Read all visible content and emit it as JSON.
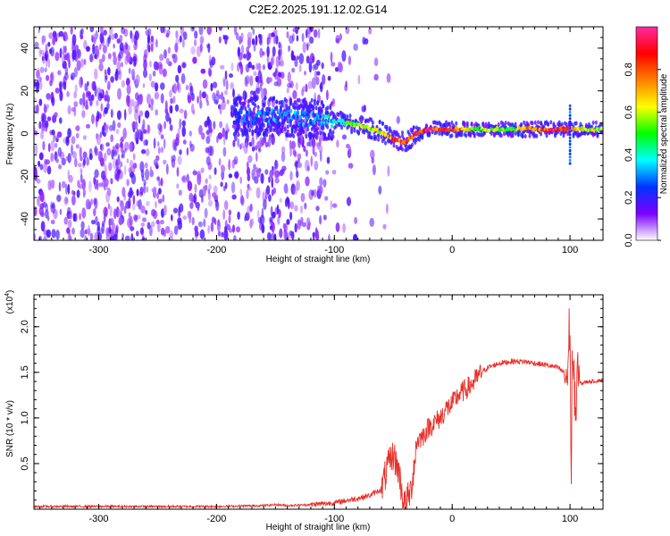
{
  "chart_data": [
    {
      "type": "heatmap",
      "title": "C2E2.2025.191.12.02.G14",
      "xlabel": "Height of straight line (km)",
      "ylabel": "Frequency (Hz)",
      "xlim": [
        -355,
        128
      ],
      "ylim": [
        -50,
        50
      ],
      "x_ticks": [
        -300,
        -200,
        -100,
        0,
        100
      ],
      "y_ticks": [
        -40,
        -20,
        0,
        20,
        40
      ],
      "colorbar": {
        "label": "Normalized spectral amplitude",
        "range": [
          0.0,
          1.0
        ],
        "ticks": [
          "0.0",
          "0.2",
          "0.4",
          "0.6",
          "0.8"
        ],
        "colors": [
          "#ffffff",
          "#7a00ff",
          "#0033ff",
          "#00ffff",
          "#00ff00",
          "#ffff00",
          "#ff8000",
          "#ff0000",
          "#ff2aa0"
        ]
      },
      "ridge": {
        "description_values_x": [
          -180,
          -150,
          -120,
          -100,
          -80,
          -60,
          -50,
          -40,
          -30,
          -20,
          0,
          20,
          50,
          80,
          95,
          110,
          128
        ],
        "description_values_y": [
          8,
          8,
          7,
          6,
          4,
          1,
          -3,
          -4,
          0,
          2,
          2,
          2,
          2,
          2,
          2,
          2,
          2
        ],
        "peak_amplitude": [
          0.3,
          0.35,
          0.35,
          0.45,
          0.6,
          0.65,
          0.85,
          0.9,
          0.95,
          0.95,
          0.95,
          0.6,
          0.6,
          0.95,
          0.9,
          0.7,
          0.6
        ]
      }
    },
    {
      "type": "line",
      "title": "",
      "xlabel": "Height of straight line (km)",
      "ylabel": "SNR (10 * v/v)",
      "y_multiplier": "(x10",
      "y_multiplier_exp": "4",
      "xlim": [
        -355,
        128
      ],
      "ylim": [
        0,
        2.35
      ],
      "x_ticks": [
        -300,
        -200,
        -100,
        0,
        100
      ],
      "y_ticks": [
        "0.5",
        "1.0",
        "1.5",
        "2.0"
      ],
      "series": [
        {
          "color": "#e8302a",
          "x": [
            -355,
            -300,
            -250,
            -200,
            -160,
            -150,
            -140,
            -120,
            -100,
            -80,
            -70,
            -60,
            -55,
            -50,
            -45,
            -42,
            -40,
            -35,
            -30,
            -25,
            -20,
            -15,
            -10,
            -5,
            0,
            5,
            10,
            15,
            20,
            25,
            30,
            40,
            50,
            60,
            70,
            80,
            90,
            95,
            98,
            100,
            101,
            102,
            103,
            104,
            105,
            106,
            108,
            110,
            115,
            120,
            128
          ],
          "y": [
            0.03,
            0.03,
            0.03,
            0.03,
            0.04,
            0.05,
            0.04,
            0.05,
            0.07,
            0.12,
            0.15,
            0.22,
            0.45,
            0.6,
            0.4,
            0.12,
            0.05,
            0.2,
            0.75,
            0.8,
            0.9,
            0.95,
            1.0,
            1.1,
            1.15,
            1.25,
            1.3,
            1.35,
            1.42,
            1.5,
            1.55,
            1.6,
            1.62,
            1.62,
            1.6,
            1.58,
            1.55,
            1.5,
            1.45,
            2.15,
            0.2,
            1.9,
            1.2,
            1.4,
            1.0,
            1.45,
            1.4,
            1.38,
            1.4,
            1.4,
            1.42
          ]
        }
      ]
    }
  ]
}
